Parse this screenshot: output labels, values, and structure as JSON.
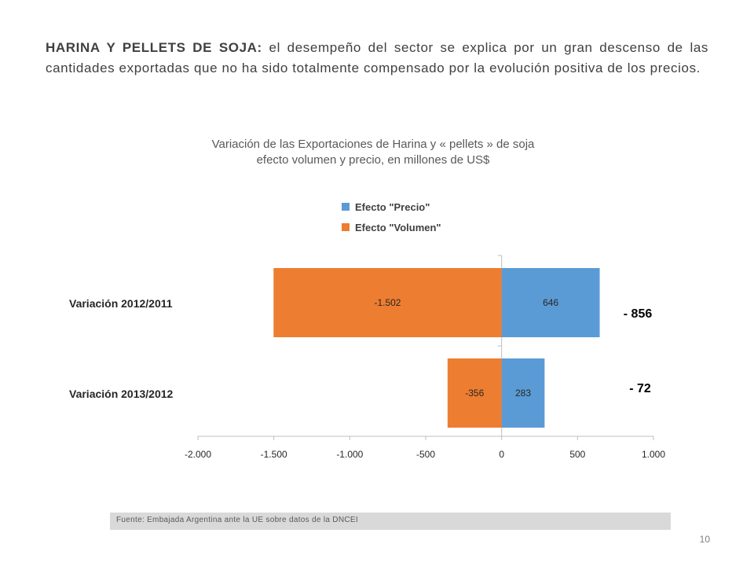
{
  "intro": {
    "lead": "HARINA Y PELLETS DE SOJA:",
    "text": " el desempeño del sector se explica por un gran descenso de las cantidades exportadas que no ha sido totalmente compensado por la evolución positiva de los precios."
  },
  "chart_title": {
    "line1": "Variación de las Exportaciones de Harina y « pellets » de soja",
    "line2": "efecto volumen y precio, en millones de US$"
  },
  "chart_data": {
    "type": "bar",
    "orientation": "horizontal",
    "stacked": true,
    "categories": [
      "Variación 2012/2011",
      "Variación 2013/2012"
    ],
    "series": [
      {
        "name": "Efecto \"Precio\"",
        "color": "#5b9bd5",
        "values": [
          646,
          283
        ],
        "labels": [
          "646",
          "283"
        ]
      },
      {
        "name": "Efecto \"Volumen\"",
        "color": "#ed7d31",
        "values": [
          -1502,
          -356
        ],
        "labels": [
          "-1.502",
          "-356"
        ]
      }
    ],
    "net_labels": [
      "- 856",
      "- 72"
    ],
    "xlim": [
      -2000,
      1000
    ],
    "xticks": [
      -2000,
      -1500,
      -1000,
      -500,
      0,
      500,
      1000
    ],
    "xtick_labels": [
      "-2.000",
      "-1.500",
      "-1.000",
      "-500",
      "0",
      "500",
      "1.000"
    ],
    "legend": "top",
    "grid": false
  },
  "footer": {
    "source": "Fuente: Embajada  Argentina ante la UE sobre datos de la DNCEI"
  },
  "page_number": "10"
}
